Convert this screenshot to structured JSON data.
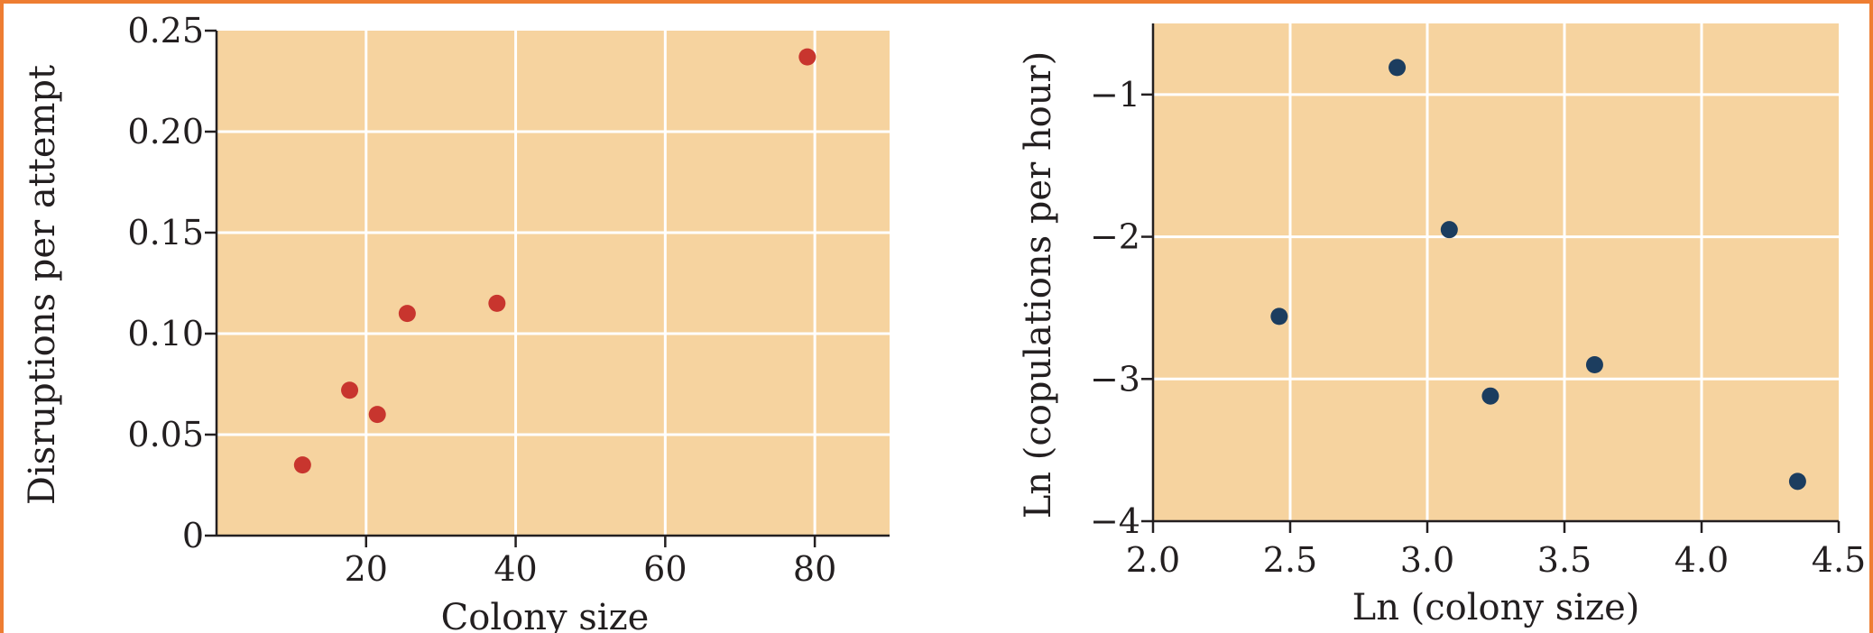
{
  "chart_data": [
    {
      "type": "scatter",
      "title": "",
      "xlabel": "Colony size",
      "ylabel": "Disruptions per attempt",
      "xlim": [
        0,
        90
      ],
      "ylim": [
        0,
        0.25
      ],
      "xticks": [
        20,
        40,
        60,
        80
      ],
      "xtick_labels": [
        "20",
        "40",
        "60",
        "80"
      ],
      "yticks": [
        0,
        0.05,
        0.1,
        0.15,
        0.2,
        0.25
      ],
      "ytick_labels": [
        "0",
        "0.05",
        "0.10",
        "0.15",
        "0.20",
        "0.25"
      ],
      "grid": true,
      "point_color": "#c8352e",
      "background_color": "#f6d39f",
      "points": [
        {
          "x": 11.5,
          "y": 0.035
        },
        {
          "x": 17.8,
          "y": 0.072
        },
        {
          "x": 21.5,
          "y": 0.06
        },
        {
          "x": 25.5,
          "y": 0.11
        },
        {
          "x": 37.5,
          "y": 0.115
        },
        {
          "x": 79.0,
          "y": 0.237
        }
      ]
    },
    {
      "type": "scatter",
      "title": "",
      "xlabel": "Ln (colony size)",
      "ylabel": "Ln (copulations per hour)",
      "xlim": [
        2.0,
        4.5
      ],
      "ylim": [
        -4,
        -0.5
      ],
      "xticks": [
        2.0,
        2.5,
        3.0,
        3.5,
        4.0,
        4.5
      ],
      "xtick_labels": [
        "2.0",
        "2.5",
        "3.0",
        "3.5",
        "4.0",
        "4.5"
      ],
      "yticks": [
        -4,
        -3,
        -2,
        -1
      ],
      "ytick_labels": [
        "−4",
        "−3",
        "−2",
        "−1"
      ],
      "grid": true,
      "point_color": "#1c3d5f",
      "background_color": "#f6d39f",
      "points": [
        {
          "x": 2.46,
          "y": -2.56
        },
        {
          "x": 2.89,
          "y": -0.81
        },
        {
          "x": 3.08,
          "y": -1.95
        },
        {
          "x": 3.23,
          "y": -3.12
        },
        {
          "x": 3.61,
          "y": -2.9
        },
        {
          "x": 4.35,
          "y": -3.72
        }
      ]
    }
  ]
}
